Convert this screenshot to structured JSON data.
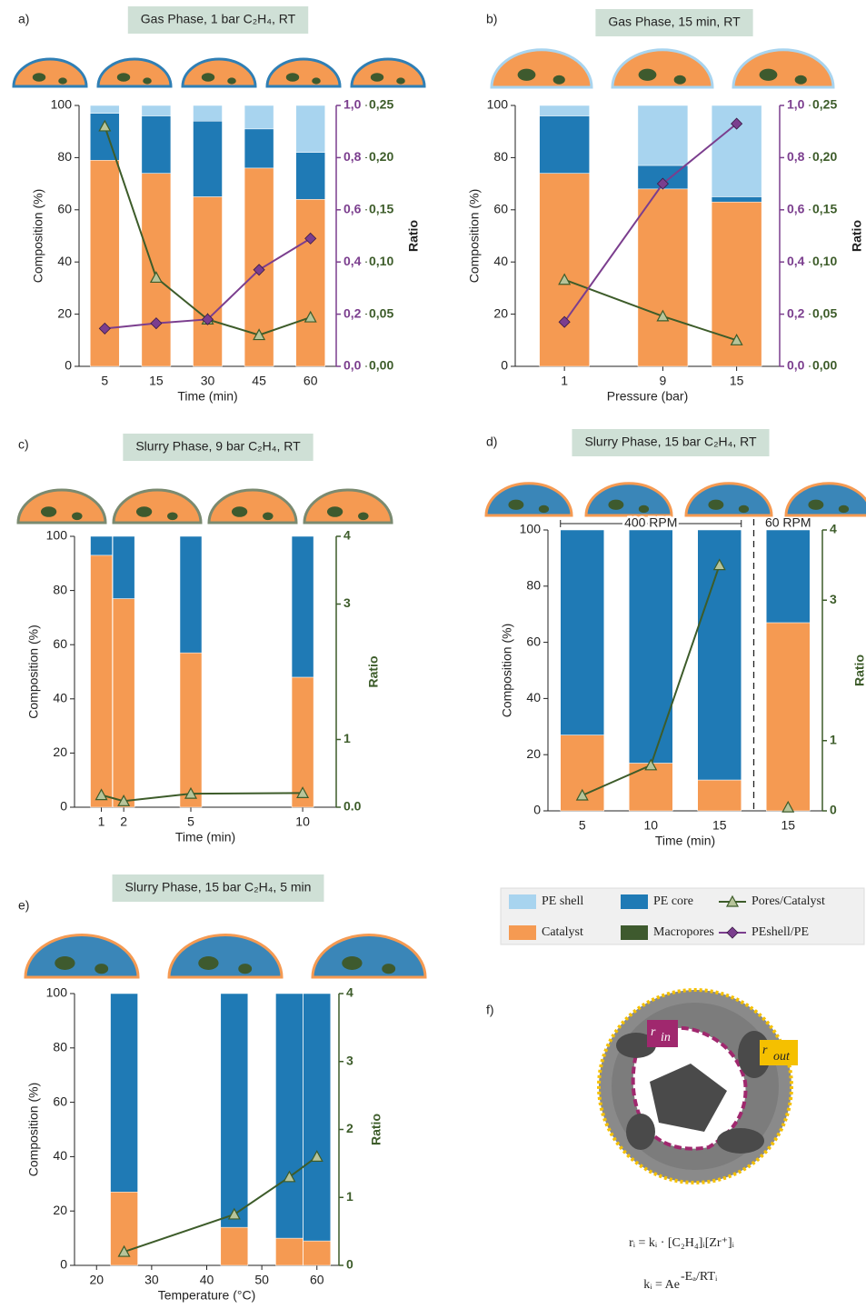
{
  "chart_data": [
    {
      "type": "bar",
      "label": "a)",
      "title": "Gas Phase,  1 bar C₂H₄,  RT",
      "xlabel": "Time (min)",
      "ylabel": "Composition (%)",
      "y2label": "Ratio",
      "categories": [
        "5",
        "15",
        "30",
        "45",
        "60"
      ],
      "ylim": [
        0,
        100
      ],
      "yticks": [
        0,
        20,
        40,
        60,
        80,
        100
      ],
      "y2lim": [
        0,
        0.25
      ],
      "y2ticks": [
        {
          "value": 0,
          "label": "0,00"
        },
        {
          "value": 0.05,
          "label": "0,05"
        },
        {
          "value": 0.1,
          "label": "0,10"
        },
        {
          "value": 0.15,
          "label": "0,15"
        },
        {
          "value": 0.2,
          "label": "0,20"
        },
        {
          "value": 0.25,
          "label": "0,25"
        }
      ],
      "y3lim": [
        0,
        1
      ],
      "y3ticks": [
        {
          "value": 0,
          "label": "0,0"
        },
        {
          "value": 0.2,
          "label": "0,2"
        },
        {
          "value": 0.4,
          "label": "0,4"
        },
        {
          "value": 0.6,
          "label": "0,6"
        },
        {
          "value": 0.8,
          "label": "0,8"
        },
        {
          "value": 1,
          "label": "1,0"
        }
      ],
      "series": [
        {
          "name": "Catalyst",
          "color": "#f59a52",
          "values": [
            79,
            74,
            65,
            76,
            64
          ]
        },
        {
          "name": "PE core",
          "color": "#1f7ab5",
          "values": [
            18,
            22,
            29,
            15,
            18
          ]
        },
        {
          "name": "PE shell",
          "color": "#a8d4ef",
          "values": [
            3,
            4,
            6,
            9,
            18
          ]
        },
        {
          "name": "Pores/Catalyst",
          "color": "#3d5c2a",
          "axis": "y2",
          "marker": "triangle",
          "values": [
            0.23,
            0.085,
            0.045,
            0.03,
            0.047
          ]
        },
        {
          "name": "PEshell/PE",
          "color": "#7b3e8e",
          "axis": "y3",
          "marker": "diamond",
          "values": [
            0.145,
            0.165,
            0.18,
            0.37,
            0.49
          ]
        }
      ]
    },
    {
      "type": "bar",
      "label": "b)",
      "title": "Gas Phase,  15 min,  RT",
      "xlabel": "Pressure (bar)",
      "ylabel": "Composition (%)",
      "y2label": "Ratio",
      "x": [
        1,
        9,
        15
      ],
      "xlim": [
        -3,
        18.5
      ],
      "xticks": [
        1,
        9,
        15
      ],
      "ylim": [
        0,
        100
      ],
      "yticks": [
        0,
        20,
        40,
        60,
        80,
        100
      ],
      "y2lim": [
        0,
        0.25
      ],
      "y2ticks": [
        {
          "value": 0,
          "label": "0,00"
        },
        {
          "value": 0.05,
          "label": "0,05"
        },
        {
          "value": 0.1,
          "label": "0,10"
        },
        {
          "value": 0.15,
          "label": "0,15"
        },
        {
          "value": 0.2,
          "label": "0,20"
        },
        {
          "value": 0.25,
          "label": "0,25"
        }
      ],
      "y3lim": [
        0,
        1
      ],
      "y3ticks": [
        {
          "value": 0,
          "label": "0,0"
        },
        {
          "value": 0.2,
          "label": "0,2"
        },
        {
          "value": 0.4,
          "label": "0,4"
        },
        {
          "value": 0.6,
          "label": "0,6"
        },
        {
          "value": 0.8,
          "label": "0,8"
        },
        {
          "value": 1,
          "label": "1,0"
        }
      ],
      "series": [
        {
          "name": "Catalyst",
          "color": "#f59a52",
          "values": [
            74,
            68,
            63
          ]
        },
        {
          "name": "PE core",
          "color": "#1f7ab5",
          "values": [
            22,
            9,
            2
          ]
        },
        {
          "name": "PE shell",
          "color": "#a8d4ef",
          "values": [
            4,
            23,
            35
          ]
        },
        {
          "name": "Pores/Catalyst",
          "color": "#3d5c2a",
          "axis": "y2",
          "marker": "triangle",
          "values": [
            0.083,
            0.048,
            0.025
          ]
        },
        {
          "name": "PEshell/PE",
          "color": "#7b3e8e",
          "axis": "y3",
          "marker": "diamond",
          "values": [
            0.17,
            0.7,
            0.93
          ]
        }
      ]
    },
    {
      "type": "bar",
      "label": "c)",
      "title": "Slurry Phase,  9 bar C₂H₄,  RT",
      "xlabel": "Time (min)",
      "ylabel": "Composition (%)",
      "y2label": "Ratio",
      "x": [
        1,
        2,
        5,
        10
      ],
      "xlim": [
        -0.2,
        11.5
      ],
      "xticks": [
        1,
        2,
        5,
        10
      ],
      "ylim": [
        0,
        100
      ],
      "yticks": [
        0,
        20,
        40,
        60,
        80,
        100
      ],
      "y2lim": [
        0,
        4
      ],
      "y2ticks": [
        {
          "value": 0,
          "label": "0.0"
        },
        1,
        3,
        4
      ],
      "series": [
        {
          "name": "Catalyst",
          "color": "#f59a52",
          "values": [
            93,
            77,
            57,
            48
          ]
        },
        {
          "name": "PE core",
          "color": "#1f7ab5",
          "values": [
            7,
            23,
            43,
            52
          ]
        },
        {
          "name": "Pores/Catalyst",
          "color": "#3d5c2a",
          "axis": "y2",
          "marker": "triangle",
          "values": [
            0.18,
            0.09,
            0.2,
            0.21
          ]
        }
      ]
    },
    {
      "type": "bar",
      "label": "d)",
      "title": "Slurry Phase,  15 bar C₂H₄,  RT",
      "xlabel": "Time (min)",
      "ylabel": "Composition (%)",
      "y2label": "Ratio",
      "categories": [
        "5",
        "10",
        "15",
        "15"
      ],
      "groups": [
        {
          "label": "400 RPM",
          "from": 0,
          "to": 2
        },
        {
          "label": "60 RPM",
          "from": 3,
          "to": 3
        }
      ],
      "ylim": [
        0,
        100
      ],
      "yticks": [
        0,
        20,
        40,
        60,
        80,
        100
      ],
      "y2lim": [
        0,
        4
      ],
      "y2ticks": [
        0,
        1,
        3,
        4
      ],
      "series": [
        {
          "name": "Catalyst",
          "color": "#f59a52",
          "values": [
            27,
            17,
            11,
            67
          ]
        },
        {
          "name": "PE core",
          "color": "#1f7ab5",
          "values": [
            73,
            83,
            89,
            33
          ]
        },
        {
          "name": "Pores/Catalyst",
          "color": "#3d5c2a",
          "axis": "y2",
          "marker": "triangle",
          "values": [
            0.22,
            0.65,
            3.5,
            0.05
          ]
        }
      ]
    },
    {
      "type": "bar",
      "label": "e)",
      "title": "Slurry Phase,  15 bar C₂H₄,  5 min",
      "xlabel": "Temperature (°C)",
      "ylabel": "Composition (%)",
      "y2label": "Ratio",
      "x": [
        25,
        45,
        55,
        60
      ],
      "xlim": [
        16,
        64
      ],
      "xticks": [
        20,
        30,
        40,
        50,
        60
      ],
      "ylim": [
        0,
        100
      ],
      "yticks": [
        0,
        20,
        40,
        60,
        80,
        100
      ],
      "y2lim": [
        0,
        4
      ],
      "y2ticks": [
        0,
        1,
        2,
        3,
        4
      ],
      "series": [
        {
          "name": "Catalyst",
          "color": "#f59a52",
          "values": [
            27,
            14,
            10,
            9
          ]
        },
        {
          "name": "PE core",
          "color": "#1f7ab5",
          "values": [
            73,
            86,
            90,
            91
          ]
        },
        {
          "name": "Pores/Catalyst",
          "color": "#3d5c2a",
          "axis": "y2",
          "marker": "triangle",
          "values": [
            0.2,
            0.75,
            1.3,
            1.6
          ]
        }
      ]
    }
  ],
  "legend": {
    "items": [
      {
        "name": "PE shell",
        "color": "#a8d4ef",
        "kind": "box"
      },
      {
        "name": "PE core",
        "color": "#1f7ab5",
        "kind": "box"
      },
      {
        "name": "Pores/Catalyst",
        "color": "#3d5c2a",
        "kind": "line",
        "marker": "triangle"
      },
      {
        "name": "Catalyst",
        "color": "#f59a52",
        "kind": "box"
      },
      {
        "name": "Macropores",
        "color": "#3e5a2e",
        "kind": "box"
      },
      {
        "name": "PEshell/PE",
        "color": "#7b3e8e",
        "kind": "line",
        "marker": "diamond"
      }
    ]
  },
  "panel_f": {
    "label": "f)",
    "r_in": "r",
    "r_in_sub": "in",
    "r_out": "r",
    "r_out_sub": "out",
    "formula_1": "rᵢ = kᵢ · [C₂H₄]ᵢ[Zr⁺]ᵢ",
    "formula_2": "kᵢ = Ae",
    "formula_2_exp": "-Eₐ/RTᵢ"
  }
}
